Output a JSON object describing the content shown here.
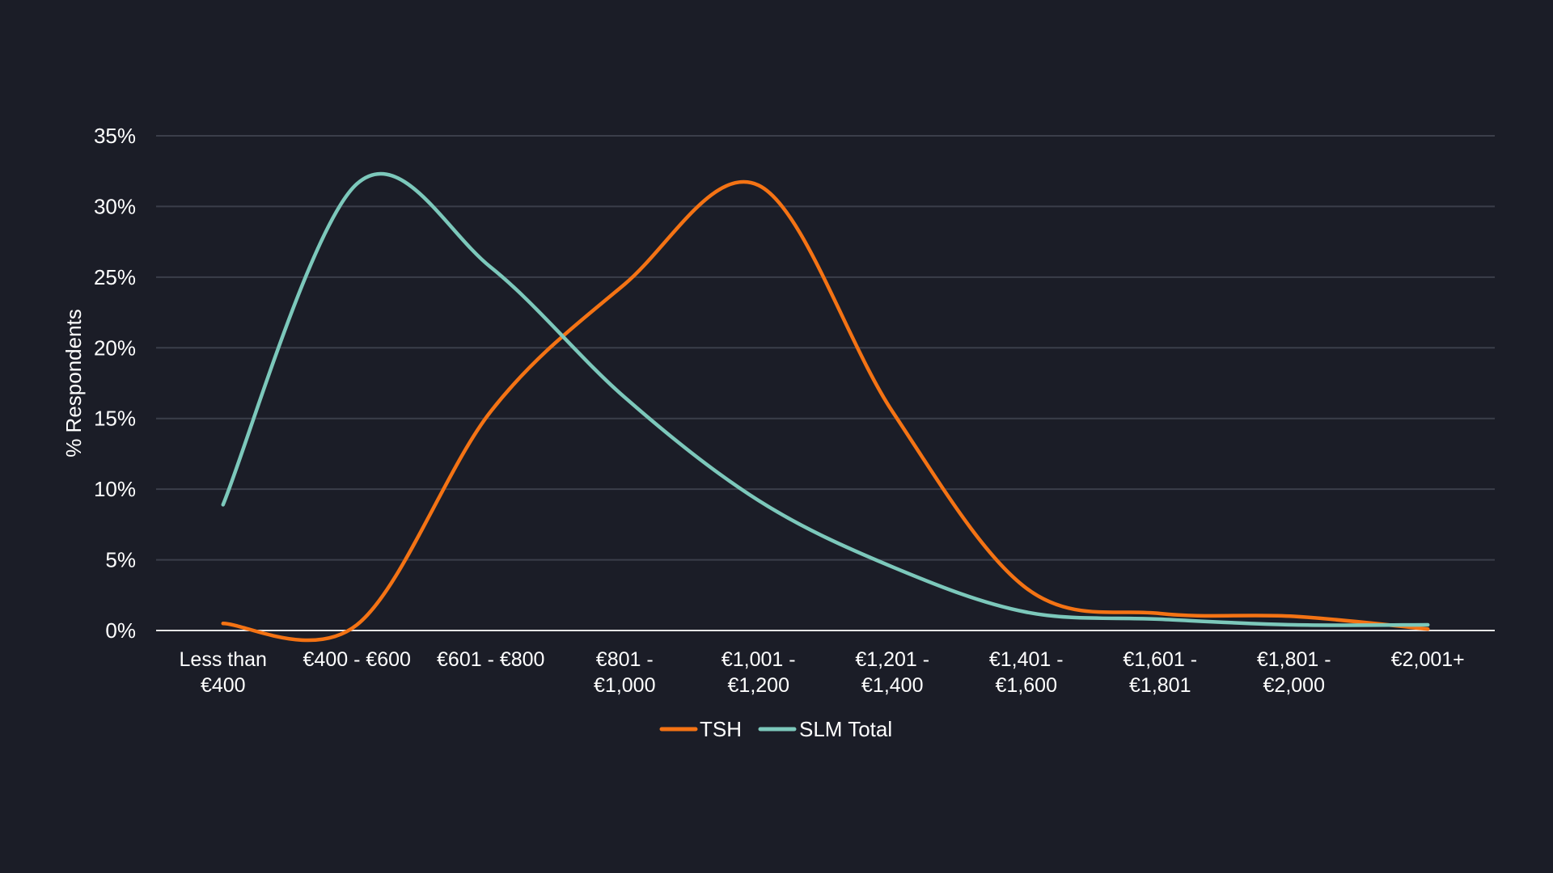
{
  "chart_data": {
    "type": "line",
    "title": "",
    "xlabel": "",
    "ylabel": "% Respondents",
    "ylim": [
      0,
      35
    ],
    "yticks": [
      0,
      5,
      10,
      15,
      20,
      25,
      30,
      35
    ],
    "ytick_format": "{v}%",
    "grid": true,
    "smooth": true,
    "legend_position": "bottom-center",
    "categories": [
      [
        "Less than",
        "€400"
      ],
      [
        "€400 - €600"
      ],
      [
        "€601 - €800"
      ],
      [
        "€801 -",
        "€1,000"
      ],
      [
        "€1,001 -",
        "€1,200"
      ],
      [
        "€1,201 -",
        "€1,400"
      ],
      [
        "€1,401 -",
        "€1,600"
      ],
      [
        "€1,601 -",
        "€1,801"
      ],
      [
        "€1,801 -",
        "€2,000"
      ],
      [
        "€2,001+"
      ]
    ],
    "series": [
      {
        "name": "TSH",
        "color": "#f47314",
        "values": [
          0.5,
          0.4,
          15.5,
          24.5,
          31.5,
          15.5,
          3.0,
          1.2,
          1.0,
          0.1
        ]
      },
      {
        "name": "SLM Total",
        "color": "#7cc8bb",
        "values": [
          8.9,
          31.6,
          25.7,
          16.5,
          9.2,
          4.5,
          1.3,
          0.8,
          0.4,
          0.4
        ]
      }
    ],
    "colors": {
      "background": "#1b1d27",
      "grid": "#3b3e4a",
      "axis": "#e6e6e6",
      "text": "#ffffff"
    }
  }
}
